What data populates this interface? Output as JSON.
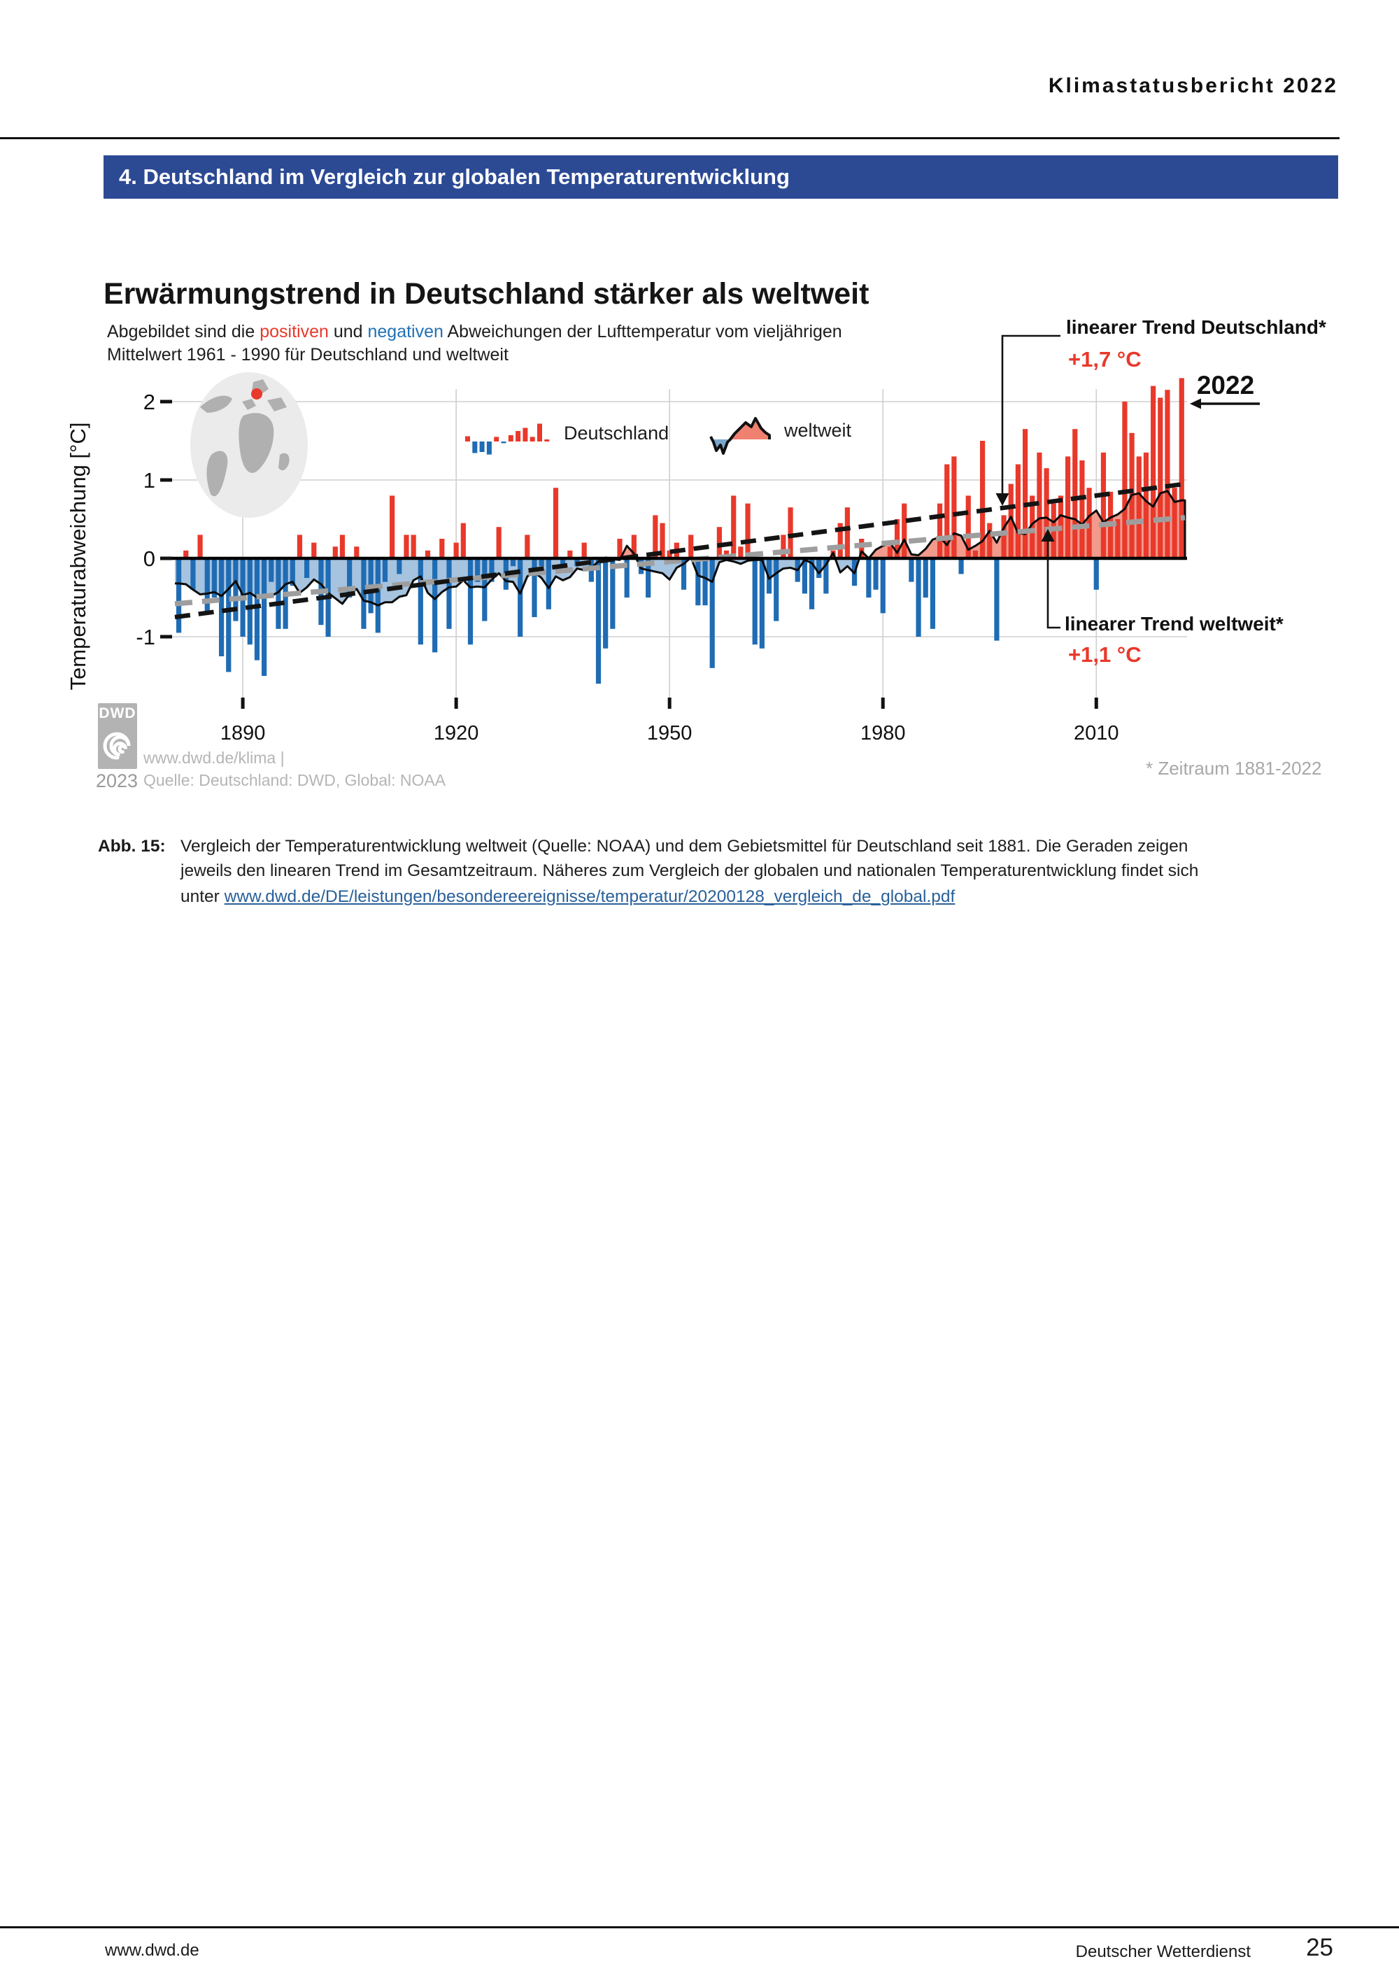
{
  "page": {
    "header": "Klimastatusbericht 2022",
    "banner": "4. Deutschland im Vergleich zur globalen Temperaturentwicklung",
    "footer_left": "www.dwd.de",
    "footer_right": "Deutscher Wetterdienst",
    "page_number": "25"
  },
  "figure": {
    "title": "Erwärmungstrend in Deutschland stärker als weltweit",
    "subtitle": {
      "pre": "Abgebildet sind die ",
      "red": "positiven",
      "mid": " und ",
      "blue": "negativen",
      "post": " Abweichungen der Lufttemperatur vom vieljährigen",
      "line2": "Mittelwert 1961 - 1990 für Deutschland und weltweit"
    },
    "legend": {
      "germany": "Deutschland",
      "world": "weltweit"
    },
    "annotations": {
      "trend_de_label": "linearer Trend Deutschland*",
      "trend_de_value": "+1,7 °C",
      "year_marker": "2022",
      "trend_world_label": "linearer Trend weltweit*",
      "trend_world_value": "+1,1 °C",
      "footnote": "* Zeitraum 1881-2022"
    },
    "axis": {
      "y_label": "Temperaturabweichung [°C]"
    },
    "credits": {
      "logo": "DWD",
      "year": "2023",
      "line1": "www.dwd.de/klima |",
      "line2": "Quelle: Deutschland: DWD, Global: NOAA"
    }
  },
  "caption": {
    "label": "Abb. 15:",
    "line1": "Vergleich der Temperaturentwicklung weltweit (Quelle: NOAA) und dem Gebietsmittel für Deutschland seit 1881. Die Geraden zeigen",
    "line2": "jeweils den linearen Trend im Gesamtzeitraum. Näheres zum Vergleich der globalen und nationalen Temperaturentwicklung findet sich",
    "line3_prefix": "unter ",
    "link": "www.dwd.de/DE/leistungen/besondereereignisse/temperatur/20200128_vergleich_de_global.pdf"
  },
  "chart_data": {
    "type": "bar+area",
    "title": "Erwärmungstrend in Deutschland stärker als weltweit",
    "ylabel": "Temperaturabweichung [°C]",
    "start_year": 1881,
    "end_year": 2022,
    "x_ticks": [
      1890,
      1920,
      1950,
      1980,
      2010
    ],
    "y_ticks": [
      2,
      1,
      0,
      -1
    ],
    "y_gridlines": [
      2,
      1,
      -1
    ],
    "ylim": [
      -1.8,
      2.35
    ],
    "trends": {
      "germany": {
        "start": -0.75,
        "end": 0.95,
        "total_warming_label": "+1,7 °C"
      },
      "world": {
        "start": -0.58,
        "end": 0.52,
        "total_warming_label": "+1,1 °C"
      }
    },
    "series": [
      {
        "name": "Deutschland",
        "type": "bar",
        "values": [
          -0.95,
          0.1,
          -0.4,
          0.3,
          -0.7,
          -0.5,
          -1.25,
          -1.45,
          -0.8,
          -1.0,
          -1.1,
          -1.3,
          -1.5,
          -0.3,
          -0.9,
          -0.9,
          -0.35,
          0.3,
          -0.25,
          0.2,
          -0.85,
          -1.0,
          0.15,
          0.3,
          -0.5,
          0.15,
          -0.9,
          -0.7,
          -0.95,
          -0.3,
          0.8,
          -0.2,
          0.3,
          0.3,
          -1.1,
          0.1,
          -1.2,
          0.25,
          -0.9,
          0.2,
          0.45,
          -1.1,
          -0.3,
          -0.8,
          -0.3,
          0.4,
          -0.4,
          -0.1,
          -1.0,
          0.3,
          -0.75,
          -0.1,
          -0.65,
          0.9,
          -0.1,
          0.1,
          -0.1,
          0.2,
          -0.3,
          -1.6,
          -1.15,
          -0.9,
          0.25,
          -0.5,
          0.3,
          -0.2,
          -0.5,
          0.55,
          0.45,
          0.1,
          0.2,
          -0.4,
          0.3,
          -0.6,
          -0.6,
          -1.4,
          0.4,
          0.1,
          0.8,
          0.15,
          0.7,
          -1.1,
          -1.15,
          -0.45,
          -0.8,
          0.3,
          0.65,
          -0.3,
          -0.45,
          -0.65,
          -0.25,
          -0.45,
          0.1,
          0.45,
          0.65,
          -0.35,
          0.25,
          -0.5,
          -0.4,
          -0.7,
          0.15,
          0.5,
          0.7,
          -0.3,
          -1.0,
          -0.5,
          -0.9,
          0.7,
          1.2,
          1.3,
          -0.2,
          0.8,
          0.1,
          1.5,
          0.45,
          -1.05,
          0.55,
          0.95,
          1.2,
          1.65,
          0.8,
          1.35,
          1.15,
          0.7,
          0.8,
          1.3,
          1.65,
          1.25,
          0.9,
          -0.4,
          1.35,
          0.85,
          0.5,
          2.0,
          1.6,
          1.3,
          1.35,
          2.2,
          2.05,
          2.15,
          0.9,
          2.3
        ]
      },
      {
        "name": "weltweit",
        "type": "area",
        "values": [
          -0.32,
          -0.33,
          -0.4,
          -0.46,
          -0.45,
          -0.43,
          -0.48,
          -0.39,
          -0.29,
          -0.47,
          -0.44,
          -0.5,
          -0.5,
          -0.48,
          -0.43,
          -0.33,
          -0.3,
          -0.44,
          -0.37,
          -0.27,
          -0.33,
          -0.44,
          -0.51,
          -0.58,
          -0.46,
          -0.39,
          -0.54,
          -0.56,
          -0.6,
          -0.56,
          -0.56,
          -0.49,
          -0.47,
          -0.28,
          -0.23,
          -0.44,
          -0.52,
          -0.43,
          -0.37,
          -0.36,
          -0.28,
          -0.37,
          -0.36,
          -0.37,
          -0.27,
          -0.19,
          -0.29,
          -0.3,
          -0.45,
          -0.23,
          -0.18,
          -0.25,
          -0.38,
          -0.23,
          -0.28,
          -0.24,
          -0.13,
          -0.15,
          -0.12,
          -0.04,
          0.01,
          -0.01,
          -0.02,
          0.16,
          0.06,
          -0.13,
          -0.15,
          -0.17,
          -0.19,
          -0.27,
          -0.12,
          -0.07,
          0.01,
          -0.22,
          -0.25,
          -0.3,
          -0.05,
          -0.02,
          -0.04,
          -0.07,
          -0.03,
          -0.02,
          -0.02,
          -0.26,
          -0.19,
          -0.13,
          -0.12,
          -0.15,
          -0.02,
          -0.06,
          -0.19,
          -0.08,
          0.07,
          -0.18,
          -0.1,
          -0.19,
          0.09,
          0.0,
          0.11,
          0.16,
          0.2,
          0.07,
          0.24,
          0.05,
          0.04,
          0.12,
          0.24,
          0.27,
          0.17,
          0.32,
          0.29,
          0.11,
          0.16,
          0.22,
          0.35,
          0.2,
          0.39,
          0.53,
          0.32,
          0.31,
          0.44,
          0.51,
          0.52,
          0.46,
          0.55,
          0.52,
          0.5,
          0.43,
          0.54,
          0.61,
          0.46,
          0.52,
          0.56,
          0.63,
          0.81,
          0.83,
          0.73,
          0.66,
          0.83,
          0.86,
          0.72,
          0.74
        ]
      }
    ],
    "colors": {
      "bar_positive": "#e8392b",
      "bar_negative": "#1f6cb4",
      "area_positive": "#f29a8c",
      "area_negative": "#a6c3df",
      "area_outline": "#0b0b0b",
      "trend_germany": "#141414",
      "trend_world": "#9e9e9e",
      "grid": "#cfcfcf",
      "banner_bg": "#2c4a94",
      "link": "#2a6099"
    }
  }
}
